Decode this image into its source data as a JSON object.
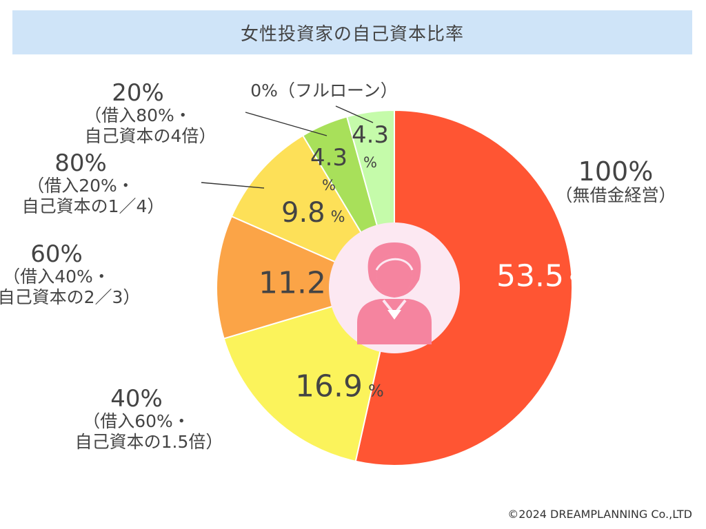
{
  "title": "女性投資家の自己資本比率",
  "copyright": "©2024 DREAMPLANNING Co.,LTD",
  "chart_data": {
    "type": "pie",
    "title": "女性投資家の自己資本比率",
    "unit": "%",
    "slices": [
      {
        "category": "100%",
        "sub": [
          "（無借金経営）"
        ],
        "value": 53.5,
        "value_label": "53.5",
        "color": "#ff5533"
      },
      {
        "category": "40%",
        "sub": [
          "（借入60%・",
          "自己資本の1.5倍）"
        ],
        "value": 16.9,
        "value_label": "16.9",
        "color": "#fbf35b"
      },
      {
        "category": "60%",
        "sub": [
          "（借入40%・",
          "自己資本の2／3）"
        ],
        "value": 11.2,
        "value_label": "11.2",
        "color": "#fba447"
      },
      {
        "category": "80%",
        "sub": [
          "（借入20%・",
          "自己資本の1／4）"
        ],
        "value": 9.8,
        "value_label": "9.8",
        "color": "#fde058"
      },
      {
        "category": "20%",
        "sub": [
          "（借入80%・",
          "自己資本の4倍）"
        ],
        "value": 4.3,
        "value_label": "4.3",
        "color": "#a8e05a"
      },
      {
        "category": "0%（フルローン）",
        "sub": [],
        "value": 4.3,
        "value_label": "4.3",
        "color": "#c5fbaa"
      }
    ],
    "center_icon": "woman-avatar-icon",
    "center_icon_color": "#f5849f",
    "center_circle_color": "#fce8f2"
  }
}
